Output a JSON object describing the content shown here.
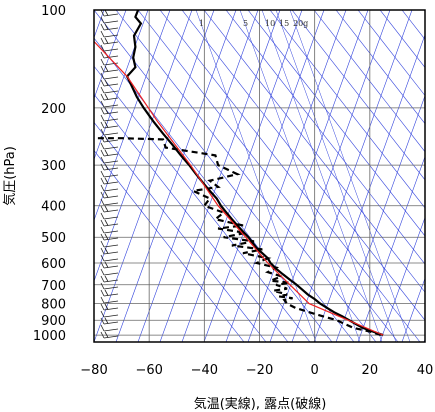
{
  "chart_data": {
    "type": "line",
    "xlabel": "気温(実線), 露点(破線)",
    "ylabel": "気圧(hPa)",
    "xlim": [
      -80,
      40
    ],
    "x_ticks": [
      -80,
      -60,
      -40,
      -20,
      0,
      20,
      40
    ],
    "ylim_hPa": [
      1050,
      100
    ],
    "y_scale": "log",
    "y_ticks": [
      100,
      200,
      300,
      400,
      500,
      600,
      700,
      800,
      900,
      1000
    ],
    "grid": true,
    "mixing_ratio_labels": [
      "1",
      "5",
      "10",
      "15",
      "20g"
    ],
    "series": [
      {
        "role": "temperature",
        "style": "solid",
        "color": "#000000",
        "points": [
          [
            24.8,
            1000
          ],
          [
            21,
            975
          ],
          [
            17.5,
            950
          ],
          [
            15,
            925
          ],
          [
            12.5,
            900
          ],
          [
            10,
            875
          ],
          [
            7,
            850
          ],
          [
            4.5,
            825
          ],
          [
            2,
            800
          ],
          [
            0,
            775
          ],
          [
            -2.5,
            750
          ],
          [
            -4.5,
            725
          ],
          [
            -6.5,
            700
          ],
          [
            -9,
            675
          ],
          [
            -11.5,
            650
          ],
          [
            -14,
            625
          ],
          [
            -16,
            600
          ],
          [
            -17,
            580
          ],
          [
            -19,
            560
          ],
          [
            -21,
            540
          ],
          [
            -22.5,
            520
          ],
          [
            -24,
            500
          ],
          [
            -26,
            480
          ],
          [
            -28,
            460
          ],
          [
            -30,
            440
          ],
          [
            -32,
            420
          ],
          [
            -34,
            400
          ],
          [
            -35.5,
            380
          ],
          [
            -38,
            360
          ],
          [
            -40.5,
            340
          ],
          [
            -43,
            320
          ],
          [
            -45.5,
            300
          ],
          [
            -48.5,
            280
          ],
          [
            -51.5,
            260
          ],
          [
            -55,
            240
          ],
          [
            -58.5,
            220
          ],
          [
            -62,
            200
          ],
          [
            -64.5,
            185
          ],
          [
            -66.5,
            170
          ],
          [
            -68,
            160
          ],
          [
            -65,
            150
          ],
          [
            -65.8,
            140
          ],
          [
            -65,
            130
          ],
          [
            -65.5,
            120
          ],
          [
            -63,
            110
          ],
          [
            -65,
            105
          ],
          [
            -64,
            100
          ]
        ]
      },
      {
        "role": "dewpoint",
        "style": "dashed",
        "color": "#000000",
        "points": [
          [
            24,
            1000
          ],
          [
            20,
            975
          ],
          [
            14,
            950
          ],
          [
            11,
            925
          ],
          [
            8,
            900
          ],
          [
            3,
            875
          ],
          [
            -2,
            850
          ],
          [
            -7,
            825
          ],
          [
            -10,
            800
          ],
          [
            -11,
            780
          ],
          [
            -8,
            770
          ],
          [
            -13,
            760
          ],
          [
            -10,
            750
          ],
          [
            -15,
            730
          ],
          [
            -10,
            720
          ],
          [
            -14,
            700
          ],
          [
            -9,
            690
          ],
          [
            -16,
            680
          ],
          [
            -12,
            660
          ],
          [
            -17,
            640
          ],
          [
            -14,
            620
          ],
          [
            -21,
            600
          ],
          [
            -17,
            580
          ],
          [
            -26,
            560
          ],
          [
            -19,
            545
          ],
          [
            -30,
            530
          ],
          [
            -22,
            515
          ],
          [
            -33,
            500
          ],
          [
            -25,
            485
          ],
          [
            -35,
            470
          ],
          [
            -26,
            460
          ],
          [
            -36,
            440
          ],
          [
            -33,
            420
          ],
          [
            -40,
            400
          ],
          [
            -38,
            380
          ],
          [
            -44,
            360
          ],
          [
            -35,
            350
          ],
          [
            -38,
            335
          ],
          [
            -28,
            320
          ],
          [
            -35,
            300
          ],
          [
            -36,
            280
          ],
          [
            -54,
            265
          ],
          [
            -55,
            250
          ],
          [
            -70,
            248
          ],
          [
            -80,
            248
          ]
        ]
      },
      {
        "role": "parcel",
        "style": "solid",
        "color": "#ee2222",
        "points": [
          [
            24.8,
            1000
          ],
          [
            -2,
            800
          ],
          [
            -17,
            600
          ],
          [
            -25,
            500
          ],
          [
            -35,
            400
          ],
          [
            -45,
            300
          ],
          [
            -57,
            220
          ],
          [
            -68,
            160
          ],
          [
            -80,
            125
          ]
        ]
      }
    ],
    "wind_barbs": "left-column",
    "background_lines": {
      "isotherm_skew": "diagonal",
      "dry_adiabats": "blue thin",
      "mixing_ratio_lines": "blue thin"
    }
  }
}
